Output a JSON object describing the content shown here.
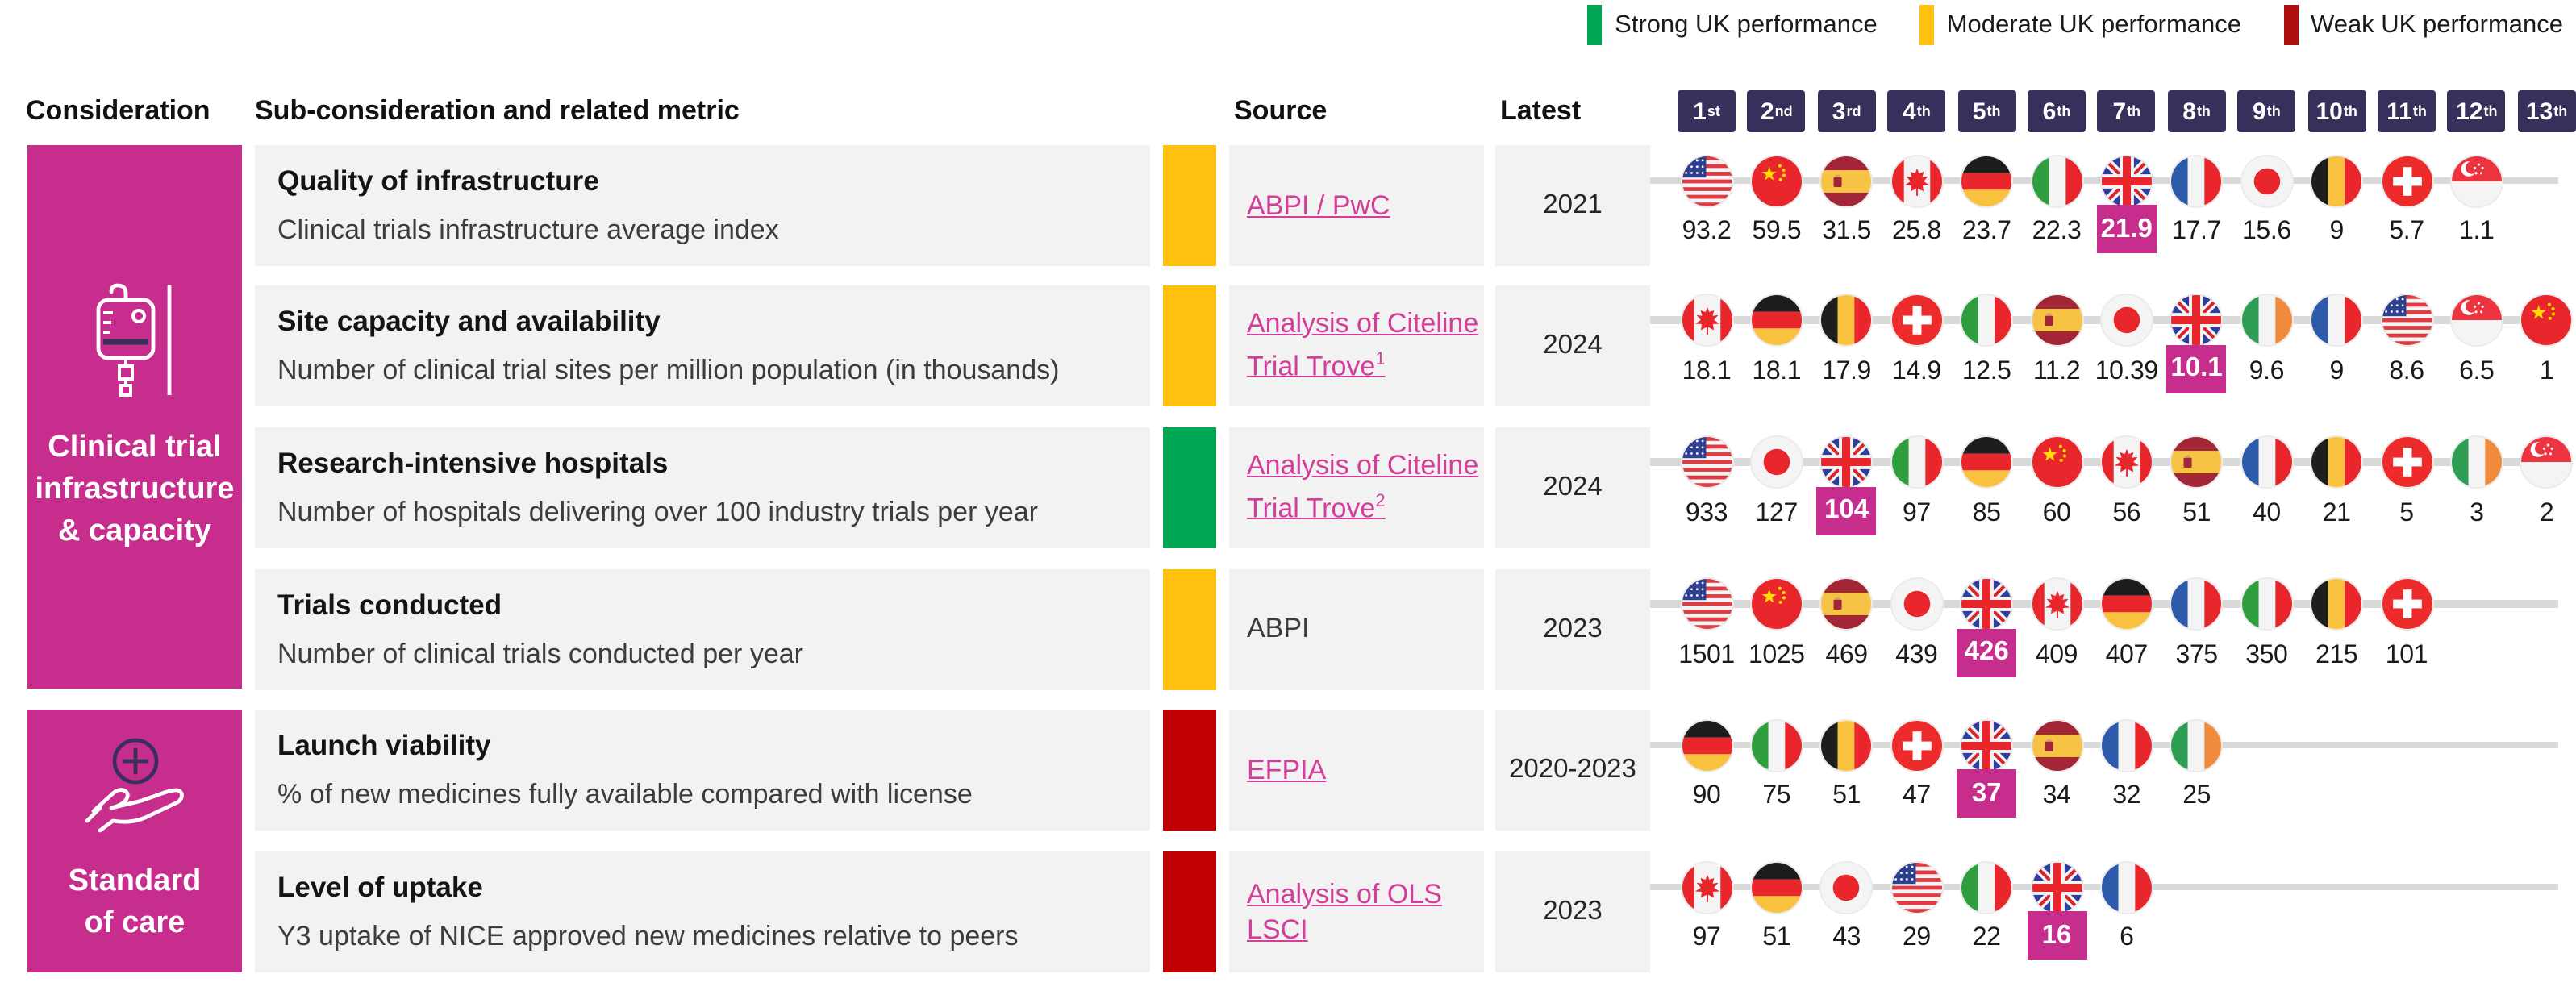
{
  "legend": {
    "items": [
      {
        "label": "Strong UK performance",
        "color": "#00A651"
      },
      {
        "label": "Moderate UK performance",
        "color": "#FFC010"
      },
      {
        "label": "Weak UK performance",
        "color": "#AD0E10"
      }
    ]
  },
  "columns": {
    "consideration": "Consideration",
    "metric": "Sub-consideration and related metric",
    "source": "Source",
    "latest": "Latest"
  },
  "ranks": [
    {
      "n": "1",
      "s": "st"
    },
    {
      "n": "2",
      "s": "nd"
    },
    {
      "n": "3",
      "s": "rd"
    },
    {
      "n": "4",
      "s": "th"
    },
    {
      "n": "5",
      "s": "th"
    },
    {
      "n": "6",
      "s": "th"
    },
    {
      "n": "7",
      "s": "th"
    },
    {
      "n": "8",
      "s": "th"
    },
    {
      "n": "9",
      "s": "th"
    },
    {
      "n": "10",
      "s": "th"
    },
    {
      "n": "11",
      "s": "th"
    },
    {
      "n": "12",
      "s": "th"
    },
    {
      "n": "13",
      "s": "th"
    }
  ],
  "considerations": [
    {
      "label": "Clinical trial\ninfrastructure\n& capacity",
      "icon": "iv-drip-icon"
    },
    {
      "label": "Standard\nof care",
      "icon": "hand-care-icon"
    }
  ],
  "colors": {
    "pink": "#C62D8C",
    "linkpink": "#D23E98",
    "navy": "#38305A",
    "card_bg": "#F2F2F2",
    "line_gray": "#D9D9D9",
    "status": {
      "strong": "#00A651",
      "moderate": "#FFC010",
      "weak": "#C00000"
    }
  },
  "chart_data": {
    "type": "table",
    "title": "UK performance by sub-consideration and country ranking",
    "rank_header_count": 13,
    "metrics": [
      {
        "title": "Quality of infrastructure",
        "desc": "Clinical trials infrastructure average index",
        "status": "moderate",
        "source": {
          "label": "ABPI / PwC",
          "sup": "",
          "link": true
        },
        "latest": "2021",
        "ranking": [
          {
            "country": "us",
            "value": "93.2"
          },
          {
            "country": "cn",
            "value": "59.5"
          },
          {
            "country": "es",
            "value": "31.5"
          },
          {
            "country": "ca",
            "value": "25.8"
          },
          {
            "country": "de",
            "value": "23.7"
          },
          {
            "country": "it",
            "value": "22.3"
          },
          {
            "country": "gb",
            "value": "21.9",
            "highlight": true
          },
          {
            "country": "fr",
            "value": "17.7"
          },
          {
            "country": "jp",
            "value": "15.6"
          },
          {
            "country": "be",
            "value": "9"
          },
          {
            "country": "ch",
            "value": "5.7"
          },
          {
            "country": "sg",
            "value": "1.1"
          }
        ]
      },
      {
        "title": "Site capacity and availability",
        "desc": "Number of clinical trial sites per million population (in thousands)",
        "status": "moderate",
        "source": {
          "label": "Analysis of Citeline Trial Trove",
          "sup": "1",
          "link": true
        },
        "latest": "2024",
        "ranking": [
          {
            "country": "ca",
            "value": "18.1"
          },
          {
            "country": "de",
            "value": "18.1"
          },
          {
            "country": "be",
            "value": "17.9"
          },
          {
            "country": "ch",
            "value": "14.9"
          },
          {
            "country": "it",
            "value": "12.5"
          },
          {
            "country": "es",
            "value": "11.2"
          },
          {
            "country": "jp",
            "value": "10.39"
          },
          {
            "country": "gb",
            "value": "10.1",
            "highlight": true
          },
          {
            "country": "ie",
            "value": "9.6"
          },
          {
            "country": "fr",
            "value": "9"
          },
          {
            "country": "us",
            "value": "8.6"
          },
          {
            "country": "sg",
            "value": "6.5"
          },
          {
            "country": "cn",
            "value": "1"
          }
        ]
      },
      {
        "title": "Research-intensive hospitals",
        "desc": "Number of hospitals delivering over 100 industry trials per year",
        "status": "strong",
        "source": {
          "label": "Analysis of Citeline Trial Trove",
          "sup": "2",
          "link": true
        },
        "latest": "2024",
        "ranking": [
          {
            "country": "us",
            "value": "933"
          },
          {
            "country": "jp",
            "value": "127"
          },
          {
            "country": "gb",
            "value": "104",
            "highlight": true
          },
          {
            "country": "it",
            "value": "97"
          },
          {
            "country": "de",
            "value": "85"
          },
          {
            "country": "cn",
            "value": "60"
          },
          {
            "country": "ca",
            "value": "56"
          },
          {
            "country": "es",
            "value": "51"
          },
          {
            "country": "fr",
            "value": "40"
          },
          {
            "country": "be",
            "value": "21"
          },
          {
            "country": "ch",
            "value": "5"
          },
          {
            "country": "ie",
            "value": "3"
          },
          {
            "country": "sg",
            "value": "2"
          }
        ]
      },
      {
        "title": "Trials conducted",
        "desc": "Number of clinical trials conducted per year",
        "status": "moderate",
        "source": {
          "label": "ABPI",
          "sup": "",
          "link": false
        },
        "latest": "2023",
        "ranking": [
          {
            "country": "us",
            "value": "1501"
          },
          {
            "country": "cn",
            "value": "1025"
          },
          {
            "country": "es",
            "value": "469"
          },
          {
            "country": "jp",
            "value": "439"
          },
          {
            "country": "gb",
            "value": "426",
            "highlight": true
          },
          {
            "country": "ca",
            "value": "409"
          },
          {
            "country": "de",
            "value": "407"
          },
          {
            "country": "fr",
            "value": "375"
          },
          {
            "country": "it",
            "value": "350"
          },
          {
            "country": "be",
            "value": "215"
          },
          {
            "country": "ch",
            "value": "101"
          }
        ]
      },
      {
        "title": "Launch viability",
        "desc": "% of new medicines fully available compared with license",
        "status": "weak",
        "source": {
          "label": "EFPIA",
          "sup": "",
          "link": true
        },
        "latest": "2020-2023",
        "ranking": [
          {
            "country": "de",
            "value": "90"
          },
          {
            "country": "it",
            "value": "75"
          },
          {
            "country": "be",
            "value": "51"
          },
          {
            "country": "ch",
            "value": "47"
          },
          {
            "country": "gb",
            "value": "37",
            "highlight": true
          },
          {
            "country": "es",
            "value": "34"
          },
          {
            "country": "fr",
            "value": "32"
          },
          {
            "country": "ie",
            "value": "25"
          }
        ]
      },
      {
        "title": "Level of uptake",
        "desc": "Y3 uptake of NICE approved new medicines relative to peers",
        "status": "weak",
        "source": {
          "label": "Analysis of OLS LSCI",
          "sup": "",
          "link": true
        },
        "latest": "2023",
        "ranking": [
          {
            "country": "ca",
            "value": "97"
          },
          {
            "country": "de",
            "value": "51"
          },
          {
            "country": "jp",
            "value": "43"
          },
          {
            "country": "us",
            "value": "29"
          },
          {
            "country": "it",
            "value": "22"
          },
          {
            "country": "gb",
            "value": "16",
            "highlight": true
          },
          {
            "country": "fr",
            "value": "6"
          }
        ]
      }
    ]
  }
}
